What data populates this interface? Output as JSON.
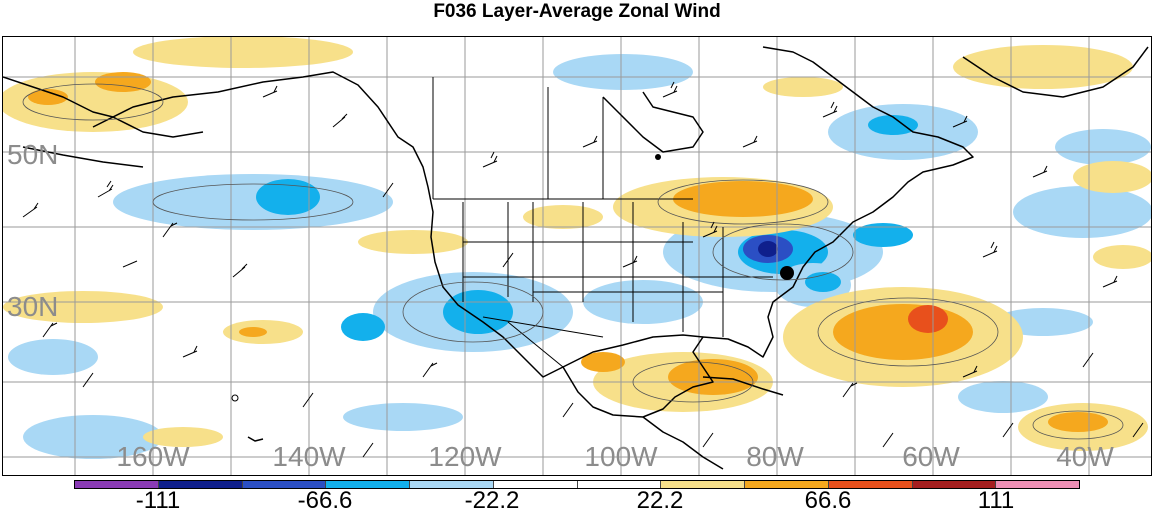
{
  "title": "F036 Layer-Average Zonal Wind",
  "lat_labels": [
    {
      "text": "50N",
      "key": "50n"
    },
    {
      "text": "30N",
      "key": "30n"
    }
  ],
  "lon_labels": [
    {
      "text": "160W",
      "key": "160w"
    },
    {
      "text": "140W",
      "key": "140w"
    },
    {
      "text": "120W",
      "key": "120w"
    },
    {
      "text": "100W",
      "key": "100w"
    },
    {
      "text": "80W",
      "key": "80w"
    },
    {
      "text": "60W",
      "key": "60w"
    },
    {
      "text": "40W",
      "key": "40w"
    }
  ],
  "colorbar": {
    "colors": [
      "#8a3bb5",
      "#0f1f8c",
      "#2b4fc4",
      "#13b0ec",
      "#a9d8f5",
      "#ffffff",
      "#ffffff",
      "#f7e08a",
      "#f5a81e",
      "#e8501c",
      "#a51f1f",
      "#ee8fb5"
    ],
    "labels": [
      "-111",
      "-66.6",
      "-22.2",
      "22.2",
      "66.6",
      "111"
    ]
  },
  "colors": {
    "light_blue": "#a9d8f5",
    "mid_blue": "#13b0ec",
    "dark_blue": "#2b4fc4",
    "navy": "#0f1f8c",
    "light_yellow": "#f7e08a",
    "orange": "#f5a81e",
    "red_orange": "#e8501c",
    "grid": "#9a9a9a"
  }
}
